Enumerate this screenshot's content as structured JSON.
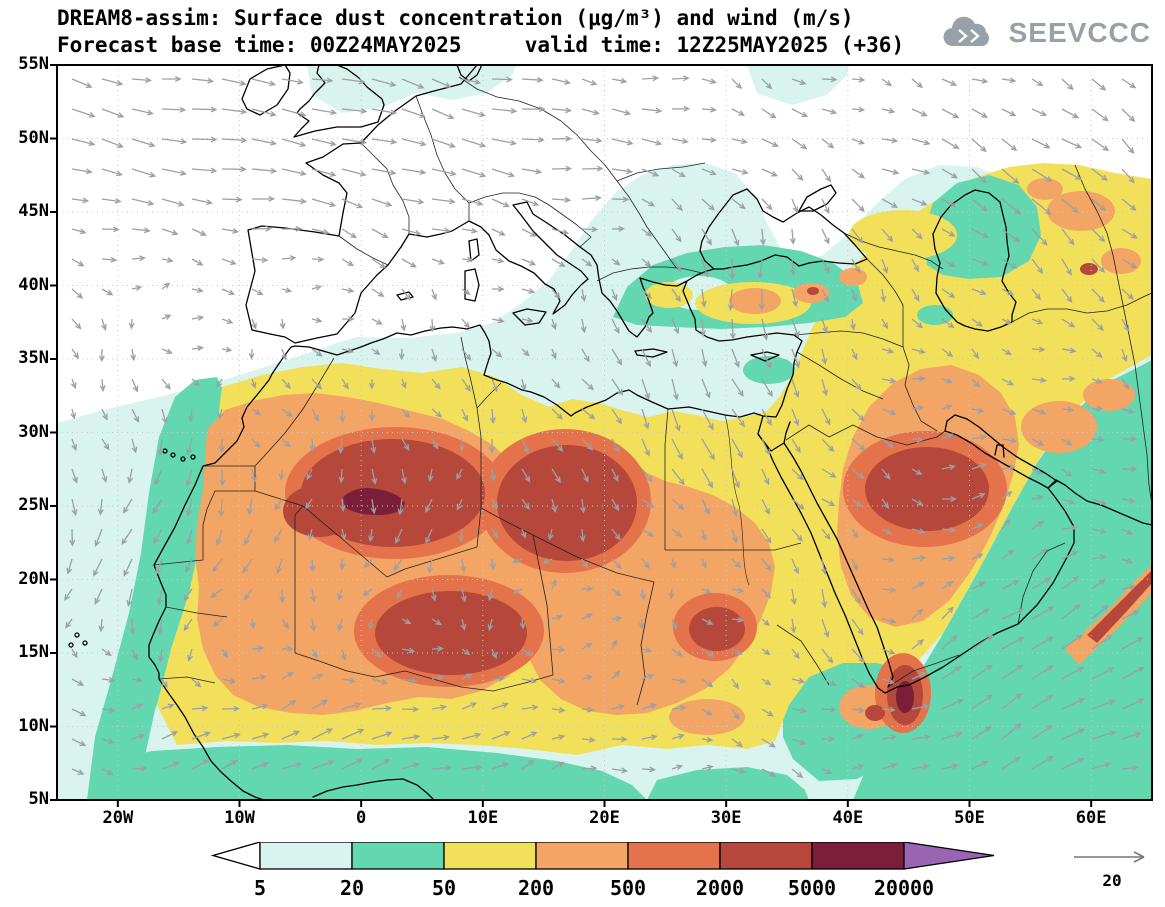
{
  "header": {
    "title_line1": "DREAM8-assim: Surface dust concentration (μg/m³) and wind (m/s)",
    "title_line2": "Forecast base time: 00Z24MAY2025     valid time: 12Z25MAY2025 (+36)"
  },
  "logo": {
    "text": "SEEVCCC"
  },
  "chart_data": {
    "type": "heatmap",
    "title": "DREAM8-assim: Surface dust concentration (μg/m³) and wind (m/s)",
    "variable": "Surface dust concentration",
    "units": "μg/m³",
    "wind_variable": "wind",
    "wind_units": "m/s",
    "forecast_base_time": "00Z24MAY2025",
    "valid_time": "12Z25MAY2025",
    "lead": "+36",
    "projection": "lat-lon",
    "lon_range": [
      -25,
      65
    ],
    "lat_range": [
      5,
      55
    ],
    "x_axis": {
      "tick_lons": [
        -20,
        -10,
        0,
        10,
        20,
        30,
        40,
        50,
        60
      ],
      "tick_labels": [
        "20W",
        "10W",
        "0",
        "10E",
        "20E",
        "30E",
        "40E",
        "50E",
        "60E"
      ]
    },
    "y_axis": {
      "tick_lats": [
        55,
        50,
        45,
        40,
        35,
        30,
        25,
        20,
        15,
        10,
        5
      ],
      "tick_labels": [
        "55N",
        "50N",
        "45N",
        "40N",
        "35N",
        "30N",
        "25N",
        "20N",
        "15N",
        "10N",
        "5N"
      ]
    },
    "colorbar": {
      "levels": [
        5,
        20,
        50,
        200,
        500,
        2000,
        5000,
        20000
      ],
      "level_labels": [
        "5",
        "20",
        "50",
        "200",
        "500",
        "2000",
        "5000",
        "20000"
      ],
      "cell_colors": [
        "#d9f3ee",
        "#62d7b0",
        "#f3e05a",
        "#f2a565",
        "#e4734c",
        "#b5483a",
        "#7a1e3a"
      ],
      "under_color": "#ffffff",
      "over_color": "#9a64b2"
    },
    "wind_reference": {
      "label": "20",
      "value": 20,
      "units": "m/s"
    },
    "notable_features": [
      "Dust maximum exceeding 5000 μg/m³ over southern Algeria near 1E,25N",
      "2000–5000 μg/m³ cores over central Algeria–Libya, Niger/Chad, Sudan and central Saudi Arabia",
      "Widespread 50–200 μg/m³ dust across North Africa and the Middle East",
      "Dust-free air over western and central Europe"
    ]
  }
}
